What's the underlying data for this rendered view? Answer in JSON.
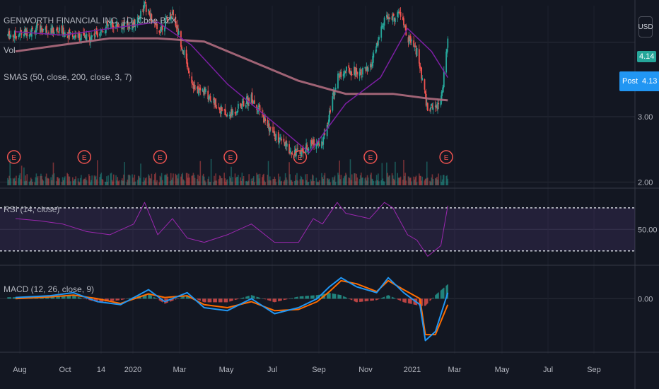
{
  "header": {
    "symbol_line": "GENWORTH FINANCIAL INC, 1D, Cboe BZX",
    "vol_label": "Vol",
    "sma_label": "SMAS (50, close, 200, close, 3, 7)",
    "rsi_label": "RSI (14, close)",
    "macd_label": "MACD (12, 26, close, 9)",
    "currency_button": "USD"
  },
  "price_tags": {
    "last": "4.14",
    "post_label": "Post",
    "post_value": "4.13"
  },
  "colors": {
    "background": "#131722",
    "up": "#26a69a",
    "down": "#ef5350",
    "sma50": "#7b1fa2",
    "sma200": "#b06c7e",
    "rsi": "#9c27b0",
    "macd": "#2196f3",
    "signal": "#ff6d00",
    "last_price_tag": "#26a69a",
    "post_tag": "#2196f3"
  },
  "earnings_marker": "E",
  "chart_data": [
    {
      "type": "candlestick",
      "panel": "price",
      "title": "GENWORTH FINANCIAL INC, 1D, Cboe BZX",
      "y_ticks": [
        "4.14",
        "3.00",
        "2.00"
      ],
      "ylim": [
        1.95,
        4.7
      ],
      "last_price": 4.14,
      "post_price": 4.13,
      "earnings_dates": [
        "2019-07-30",
        "2019-10-29",
        "2020-02-04",
        "2020-05-05",
        "2020-08-03",
        "2020-11-02",
        "2021-02-08"
      ],
      "series": [
        {
          "name": "price",
          "x": [
            "2019-08-01",
            "2019-09-01",
            "2019-10-01",
            "2019-11-01",
            "2019-12-01",
            "2020-01-01",
            "2020-01-15",
            "2020-02-01",
            "2020-02-20",
            "2020-03-10",
            "2020-03-20",
            "2020-04-01",
            "2020-05-01",
            "2020-06-01",
            "2020-07-01",
            "2020-07-20",
            "2020-08-01",
            "2020-08-20",
            "2020-09-01",
            "2020-09-20",
            "2020-10-01",
            "2020-11-01",
            "2020-11-20",
            "2020-12-01",
            "2020-12-10",
            "2020-12-20",
            "2021-01-01",
            "2021-01-15",
            "2021-02-01",
            "2021-02-10"
          ],
          "values": [
            4.25,
            4.35,
            4.3,
            4.2,
            4.4,
            4.4,
            4.7,
            4.3,
            4.6,
            3.8,
            3.4,
            3.4,
            3.0,
            3.3,
            2.7,
            2.5,
            2.45,
            2.6,
            2.6,
            3.6,
            3.7,
            3.7,
            4.5,
            4.5,
            4.6,
            4.2,
            4.0,
            3.1,
            3.25,
            4.14
          ]
        },
        {
          "name": "SMA 50",
          "x": [
            "2019-08-01",
            "2019-10-01",
            "2019-12-01",
            "2020-02-01",
            "2020-03-15",
            "2020-05-01",
            "2020-07-01",
            "2020-08-15",
            "2020-10-01",
            "2020-11-15",
            "2020-12-20",
            "2021-01-20",
            "2021-02-10"
          ],
          "values": [
            4.3,
            4.25,
            4.35,
            4.45,
            4.1,
            3.5,
            2.9,
            2.45,
            3.2,
            3.6,
            4.35,
            4.0,
            3.6
          ]
        },
        {
          "name": "SMA 200",
          "x": [
            "2019-08-01",
            "2019-10-01",
            "2019-12-01",
            "2020-02-01",
            "2020-04-01",
            "2020-06-01",
            "2020-08-01",
            "2020-10-01",
            "2020-12-01",
            "2021-01-15",
            "2021-02-10"
          ],
          "values": [
            4.0,
            4.1,
            4.2,
            4.2,
            4.15,
            3.85,
            3.55,
            3.35,
            3.35,
            3.28,
            3.25
          ]
        }
      ]
    },
    {
      "type": "line",
      "panel": "rsi",
      "title": "RSI (14, close)",
      "y_ticks": [
        "50.00"
      ],
      "ylim": [
        20,
        85
      ],
      "band": [
        30,
        70
      ],
      "series": [
        {
          "name": "RSI",
          "x": [
            "2019-08-01",
            "2019-09-01",
            "2019-10-01",
            "2019-11-01",
            "2019-12-01",
            "2020-01-01",
            "2020-01-15",
            "2020-02-01",
            "2020-02-20",
            "2020-03-10",
            "2020-04-01",
            "2020-05-01",
            "2020-06-01",
            "2020-07-01",
            "2020-08-01",
            "2020-08-20",
            "2020-09-01",
            "2020-09-20",
            "2020-10-01",
            "2020-11-01",
            "2020-11-20",
            "2020-12-01",
            "2020-12-20",
            "2021-01-01",
            "2021-01-15",
            "2021-02-01",
            "2021-02-10"
          ],
          "values": [
            60,
            58,
            55,
            48,
            45,
            55,
            75,
            45,
            60,
            42,
            38,
            45,
            55,
            38,
            38,
            60,
            55,
            75,
            65,
            60,
            75,
            70,
            45,
            40,
            25,
            35,
            72
          ]
        }
      ]
    },
    {
      "type": "line",
      "panel": "macd",
      "title": "MACD (12, 26, close, 9)",
      "y_ticks": [
        "0.00"
      ],
      "ylim": [
        -0.8,
        0.5
      ],
      "series": [
        {
          "name": "MACD",
          "x": [
            "2019-08-01",
            "2019-09-15",
            "2019-10-15",
            "2019-11-15",
            "2019-12-15",
            "2020-01-20",
            "2020-02-10",
            "2020-03-10",
            "2020-04-01",
            "2020-05-01",
            "2020-06-01",
            "2020-07-01",
            "2020-08-01",
            "2020-08-25",
            "2020-09-10",
            "2020-09-25",
            "2020-10-15",
            "2020-11-10",
            "2020-11-25",
            "2020-12-15",
            "2021-01-05",
            "2021-01-12",
            "2021-01-25",
            "2021-02-10"
          ],
          "values": [
            0.02,
            0.05,
            0.1,
            -0.05,
            -0.1,
            0.15,
            -0.05,
            0.1,
            -0.15,
            -0.2,
            0.0,
            -0.25,
            -0.15,
            0.0,
            0.2,
            0.35,
            0.2,
            0.1,
            0.35,
            0.1,
            -0.1,
            -0.7,
            -0.55,
            0.1
          ]
        },
        {
          "name": "Signal",
          "x": [
            "2019-08-01",
            "2019-09-15",
            "2019-10-15",
            "2019-11-15",
            "2019-12-15",
            "2020-01-20",
            "2020-02-10",
            "2020-03-10",
            "2020-04-01",
            "2020-05-01",
            "2020-06-01",
            "2020-07-01",
            "2020-08-01",
            "2020-08-25",
            "2020-09-10",
            "2020-09-25",
            "2020-10-15",
            "2020-11-10",
            "2020-11-25",
            "2020-12-15",
            "2021-01-05",
            "2021-01-12",
            "2021-01-25",
            "2021-02-10"
          ],
          "values": [
            0.0,
            0.03,
            0.06,
            0.0,
            -0.08,
            0.08,
            0.02,
            0.05,
            -0.1,
            -0.15,
            -0.05,
            -0.2,
            -0.18,
            -0.05,
            0.12,
            0.3,
            0.25,
            0.12,
            0.3,
            0.15,
            0.0,
            -0.6,
            -0.6,
            -0.1
          ]
        }
      ]
    },
    {
      "type": "axis",
      "panel": "time",
      "tick_labels": [
        "Aug",
        "Oct",
        "14",
        "2020",
        "Mar",
        "May",
        "Jul",
        "Sep",
        "Nov",
        "2021",
        "Mar",
        "May",
        "Jul",
        "Sep"
      ]
    }
  ]
}
